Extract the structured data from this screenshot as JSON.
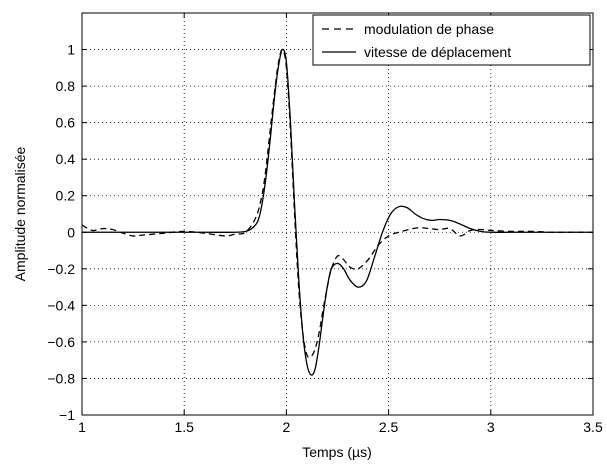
{
  "chart_data": {
    "type": "line",
    "title": "",
    "xlabel": "Temps (µs)",
    "ylabel": "Amplitude normalisée",
    "xlim": [
      1,
      3.5
    ],
    "ylim": [
      -1,
      1.2
    ],
    "x_ticks": [
      1,
      1.5,
      2,
      2.5,
      3,
      3.5
    ],
    "x_tick_labels": [
      "1",
      "1.5",
      "2",
      "2.5",
      "3",
      "3.5"
    ],
    "y_ticks": [
      -1,
      -0.8,
      -0.6,
      -0.4,
      -0.2,
      0,
      0.2,
      0.4,
      0.6,
      0.8,
      1
    ],
    "y_tick_labels": [
      "−1",
      "−0.8",
      "−0.6",
      "−0.4",
      "−0.2",
      "0",
      "0.2",
      "0.4",
      "0.6",
      "0.8",
      "1"
    ],
    "grid": true,
    "legend_position": "top-right",
    "series": [
      {
        "name": "modulation de phase",
        "style": "dashed",
        "color": "#000000",
        "x": [
          1.0,
          1.05,
          1.1,
          1.15,
          1.2,
          1.25,
          1.3,
          1.4,
          1.5,
          1.6,
          1.7,
          1.75,
          1.8,
          1.85,
          1.88,
          1.9,
          1.92,
          1.94,
          1.96,
          1.98,
          2.0,
          2.02,
          2.04,
          2.06,
          2.08,
          2.1,
          2.12,
          2.14,
          2.16,
          2.18,
          2.2,
          2.22,
          2.25,
          2.28,
          2.31,
          2.35,
          2.4,
          2.45,
          2.5,
          2.55,
          2.6,
          2.65,
          2.7,
          2.75,
          2.8,
          2.85,
          2.9,
          2.95,
          3.0,
          3.1,
          3.2,
          3.3,
          3.4,
          3.5
        ],
        "y": [
          0.04,
          0.01,
          0.02,
          0.015,
          -0.005,
          -0.02,
          -0.015,
          -0.005,
          0.005,
          -0.005,
          -0.02,
          -0.01,
          0.0,
          0.08,
          0.2,
          0.35,
          0.55,
          0.75,
          0.92,
          1.0,
          0.9,
          0.55,
          0.1,
          -0.3,
          -0.55,
          -0.67,
          -0.68,
          -0.64,
          -0.55,
          -0.42,
          -0.3,
          -0.2,
          -0.13,
          -0.15,
          -0.19,
          -0.2,
          -0.15,
          -0.07,
          -0.02,
          0.0,
          0.015,
          0.025,
          0.02,
          0.015,
          0.02,
          -0.02,
          0.01,
          0.015,
          0.01,
          0.005,
          0.005,
          0.0,
          0.0,
          0.0
        ]
      },
      {
        "name": "vitesse de déplacement",
        "style": "solid",
        "color": "#000000",
        "x": [
          1.0,
          1.2,
          1.4,
          1.6,
          1.75,
          1.8,
          1.83,
          1.86,
          1.88,
          1.9,
          1.92,
          1.94,
          1.96,
          1.98,
          2.0,
          2.02,
          2.04,
          2.06,
          2.08,
          2.1,
          2.12,
          2.14,
          2.16,
          2.18,
          2.2,
          2.22,
          2.25,
          2.28,
          2.31,
          2.35,
          2.39,
          2.43,
          2.47,
          2.51,
          2.55,
          2.59,
          2.63,
          2.67,
          2.71,
          2.75,
          2.8,
          2.85,
          2.9,
          2.95,
          3.0,
          3.1,
          3.2,
          3.3,
          3.4,
          3.5
        ],
        "y": [
          0.0,
          0.0,
          0.0,
          0.0,
          0.0,
          0.005,
          0.02,
          0.06,
          0.15,
          0.3,
          0.5,
          0.72,
          0.9,
          1.0,
          0.93,
          0.6,
          0.15,
          -0.25,
          -0.55,
          -0.72,
          -0.78,
          -0.75,
          -0.62,
          -0.45,
          -0.3,
          -0.2,
          -0.17,
          -0.2,
          -0.26,
          -0.3,
          -0.27,
          -0.14,
          0.0,
          0.1,
          0.14,
          0.135,
          0.1,
          0.075,
          0.065,
          0.07,
          0.065,
          0.045,
          0.02,
          0.005,
          0.0,
          0.0,
          0.0,
          0.0,
          0.0,
          0.0
        ]
      }
    ]
  }
}
